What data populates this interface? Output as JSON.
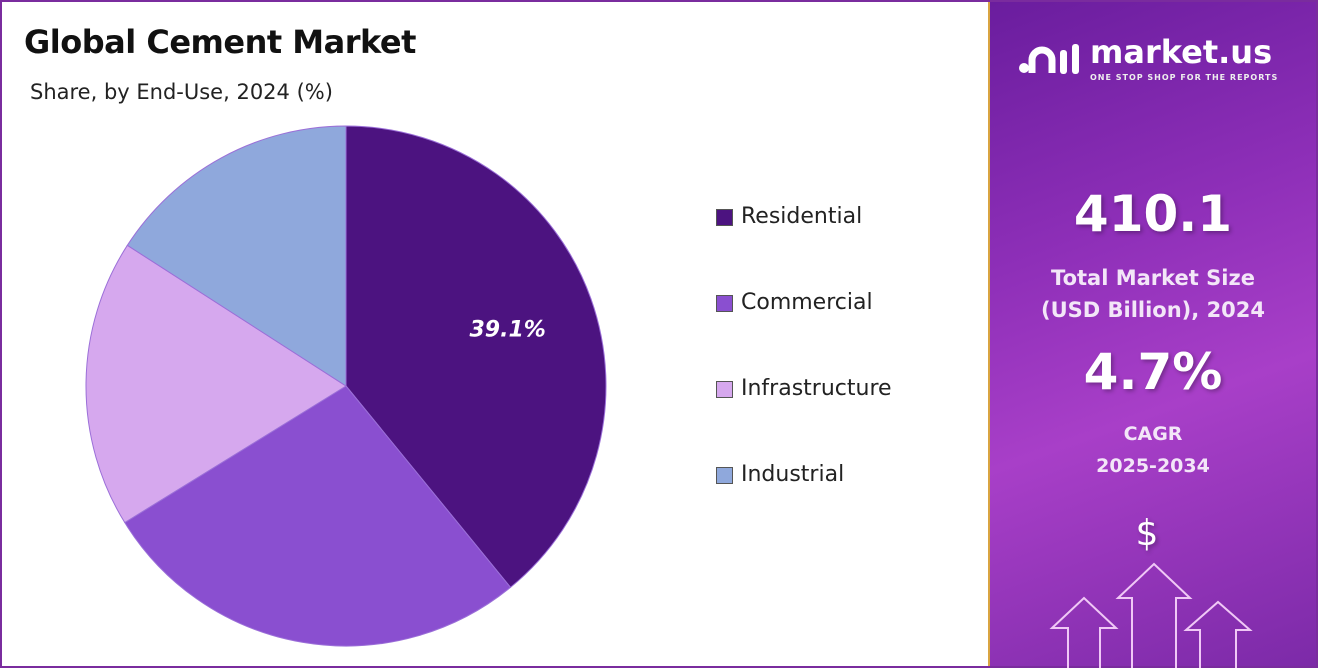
{
  "chart_data": {
    "type": "pie",
    "title": "Global Cement Market",
    "subtitle": "Share, by End-Use, 2024 (%)",
    "categories": [
      "Residential",
      "Commercial",
      "Infrastructure",
      "Industrial"
    ],
    "values": [
      39.1,
      27.1,
      17.9,
      15.9
    ],
    "data_labels": [
      "39.1%",
      "",
      "",
      ""
    ],
    "colors": [
      "#4c1380",
      "#8a4fd0",
      "#d6a8ee",
      "#8fa8dc"
    ],
    "legend_position": "right"
  },
  "sidebar": {
    "brand": "market.us",
    "tagline": "ONE STOP SHOP FOR THE REPORTS",
    "market_size": "410.1",
    "market_size_label_1": "Total Market Size",
    "market_size_label_2": "(USD Billion), 2024",
    "cagr": "4.7%",
    "cagr_label": "CAGR",
    "cagr_period": "2025-2034",
    "dollar": "$"
  }
}
